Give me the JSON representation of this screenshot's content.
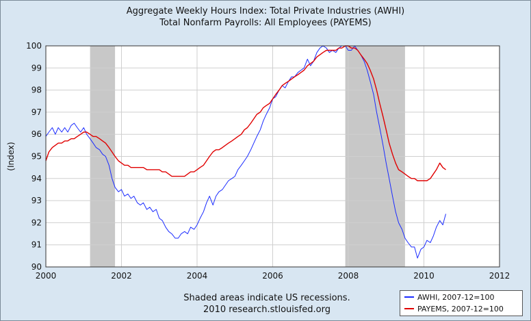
{
  "chart_data": {
    "type": "line",
    "title": "Aggregate Weekly Hours Index: Total Private Industries (AWHI)",
    "subtitle": "Total Nonfarm Payrolls: All Employees (PAYEMS)",
    "xlabel": "",
    "ylabel": "(Index)",
    "xlim": [
      2000,
      2012
    ],
    "ylim": [
      90,
      100
    ],
    "x_ticks": [
      "2000",
      "2002",
      "2004",
      "2006",
      "2008",
      "2010",
      "2012"
    ],
    "y_ticks": [
      "90",
      "91",
      "92",
      "93",
      "94",
      "95",
      "96",
      "97",
      "98",
      "99",
      "100"
    ],
    "grid": true,
    "legend_position": "bottom-right",
    "recessions": [
      [
        2001.17,
        2001.83
      ],
      [
        2007.92,
        2009.5
      ]
    ],
    "series": [
      {
        "name": "AWHI, 2007-12=100",
        "color": "#1a2bff",
        "points": [
          [
            2000.0,
            95.9
          ],
          [
            2000.08,
            96.1
          ],
          [
            2000.17,
            96.3
          ],
          [
            2000.25,
            96.0
          ],
          [
            2000.33,
            96.3
          ],
          [
            2000.42,
            96.1
          ],
          [
            2000.5,
            96.3
          ],
          [
            2000.58,
            96.1
          ],
          [
            2000.67,
            96.4
          ],
          [
            2000.75,
            96.5
          ],
          [
            2000.83,
            96.3
          ],
          [
            2000.92,
            96.1
          ],
          [
            2001.0,
            96.3
          ],
          [
            2001.08,
            96.0
          ],
          [
            2001.17,
            95.8
          ],
          [
            2001.25,
            95.6
          ],
          [
            2001.33,
            95.4
          ],
          [
            2001.42,
            95.3
          ],
          [
            2001.5,
            95.1
          ],
          [
            2001.58,
            95.0
          ],
          [
            2001.67,
            94.6
          ],
          [
            2001.75,
            94.0
          ],
          [
            2001.83,
            93.6
          ],
          [
            2001.92,
            93.4
          ],
          [
            2002.0,
            93.5
          ],
          [
            2002.08,
            93.2
          ],
          [
            2002.17,
            93.3
          ],
          [
            2002.25,
            93.1
          ],
          [
            2002.33,
            93.2
          ],
          [
            2002.42,
            92.9
          ],
          [
            2002.5,
            92.8
          ],
          [
            2002.58,
            92.9
          ],
          [
            2002.67,
            92.6
          ],
          [
            2002.75,
            92.7
          ],
          [
            2002.83,
            92.5
          ],
          [
            2002.92,
            92.6
          ],
          [
            2003.0,
            92.2
          ],
          [
            2003.08,
            92.1
          ],
          [
            2003.17,
            91.8
          ],
          [
            2003.25,
            91.6
          ],
          [
            2003.33,
            91.5
          ],
          [
            2003.42,
            91.3
          ],
          [
            2003.5,
            91.3
          ],
          [
            2003.58,
            91.5
          ],
          [
            2003.67,
            91.6
          ],
          [
            2003.75,
            91.5
          ],
          [
            2003.83,
            91.8
          ],
          [
            2003.92,
            91.7
          ],
          [
            2004.0,
            91.9
          ],
          [
            2004.08,
            92.2
          ],
          [
            2004.17,
            92.5
          ],
          [
            2004.25,
            92.9
          ],
          [
            2004.33,
            93.2
          ],
          [
            2004.42,
            92.8
          ],
          [
            2004.5,
            93.2
          ],
          [
            2004.58,
            93.4
          ],
          [
            2004.67,
            93.5
          ],
          [
            2004.75,
            93.7
          ],
          [
            2004.83,
            93.9
          ],
          [
            2004.92,
            94.0
          ],
          [
            2005.0,
            94.1
          ],
          [
            2005.08,
            94.4
          ],
          [
            2005.17,
            94.6
          ],
          [
            2005.25,
            94.8
          ],
          [
            2005.33,
            95.0
          ],
          [
            2005.42,
            95.3
          ],
          [
            2005.5,
            95.6
          ],
          [
            2005.58,
            95.9
          ],
          [
            2005.67,
            96.2
          ],
          [
            2005.75,
            96.6
          ],
          [
            2005.83,
            96.9
          ],
          [
            2005.92,
            97.2
          ],
          [
            2006.0,
            97.6
          ],
          [
            2006.08,
            97.7
          ],
          [
            2006.17,
            98.0
          ],
          [
            2006.25,
            98.2
          ],
          [
            2006.33,
            98.1
          ],
          [
            2006.42,
            98.4
          ],
          [
            2006.5,
            98.6
          ],
          [
            2006.58,
            98.6
          ],
          [
            2006.67,
            98.8
          ],
          [
            2006.75,
            98.9
          ],
          [
            2006.83,
            99.0
          ],
          [
            2006.92,
            99.4
          ],
          [
            2007.0,
            99.1
          ],
          [
            2007.08,
            99.3
          ],
          [
            2007.17,
            99.7
          ],
          [
            2007.25,
            99.9
          ],
          [
            2007.33,
            100.0
          ],
          [
            2007.42,
            99.9
          ],
          [
            2007.5,
            99.7
          ],
          [
            2007.58,
            99.8
          ],
          [
            2007.67,
            99.7
          ],
          [
            2007.75,
            99.9
          ],
          [
            2007.83,
            100.0
          ],
          [
            2007.92,
            100.0
          ],
          [
            2008.0,
            99.8
          ],
          [
            2008.08,
            99.8
          ],
          [
            2008.17,
            100.0
          ],
          [
            2008.25,
            99.8
          ],
          [
            2008.33,
            99.6
          ],
          [
            2008.42,
            99.3
          ],
          [
            2008.5,
            98.9
          ],
          [
            2008.58,
            98.4
          ],
          [
            2008.67,
            97.8
          ],
          [
            2008.75,
            97.0
          ],
          [
            2008.83,
            96.3
          ],
          [
            2008.92,
            95.5
          ],
          [
            2009.0,
            94.7
          ],
          [
            2009.08,
            94.0
          ],
          [
            2009.17,
            93.2
          ],
          [
            2009.25,
            92.5
          ],
          [
            2009.33,
            92.0
          ],
          [
            2009.42,
            91.7
          ],
          [
            2009.5,
            91.3
          ],
          [
            2009.58,
            91.1
          ],
          [
            2009.67,
            90.9
          ],
          [
            2009.75,
            90.9
          ],
          [
            2009.83,
            90.4
          ],
          [
            2009.92,
            90.8
          ],
          [
            2010.0,
            90.9
          ],
          [
            2010.08,
            91.2
          ],
          [
            2010.17,
            91.1
          ],
          [
            2010.25,
            91.4
          ],
          [
            2010.33,
            91.8
          ],
          [
            2010.42,
            92.1
          ],
          [
            2010.5,
            91.9
          ],
          [
            2010.58,
            92.4
          ]
        ]
      },
      {
        "name": "PAYEMS, 2007-12=100",
        "color": "#e00000",
        "points": [
          [
            2000.0,
            94.8
          ],
          [
            2000.08,
            95.2
          ],
          [
            2000.17,
            95.4
          ],
          [
            2000.25,
            95.5
          ],
          [
            2000.33,
            95.6
          ],
          [
            2000.42,
            95.6
          ],
          [
            2000.5,
            95.7
          ],
          [
            2000.58,
            95.7
          ],
          [
            2000.67,
            95.8
          ],
          [
            2000.75,
            95.8
          ],
          [
            2000.83,
            95.9
          ],
          [
            2000.92,
            96.0
          ],
          [
            2001.0,
            96.1
          ],
          [
            2001.08,
            96.1
          ],
          [
            2001.17,
            96.0
          ],
          [
            2001.25,
            95.9
          ],
          [
            2001.33,
            95.9
          ],
          [
            2001.42,
            95.8
          ],
          [
            2001.5,
            95.7
          ],
          [
            2001.58,
            95.6
          ],
          [
            2001.67,
            95.4
          ],
          [
            2001.75,
            95.2
          ],
          [
            2001.83,
            95.0
          ],
          [
            2001.92,
            94.8
          ],
          [
            2002.0,
            94.7
          ],
          [
            2002.08,
            94.6
          ],
          [
            2002.17,
            94.6
          ],
          [
            2002.25,
            94.5
          ],
          [
            2002.33,
            94.5
          ],
          [
            2002.42,
            94.5
          ],
          [
            2002.5,
            94.5
          ],
          [
            2002.58,
            94.5
          ],
          [
            2002.67,
            94.4
          ],
          [
            2002.75,
            94.4
          ],
          [
            2002.83,
            94.4
          ],
          [
            2002.92,
            94.4
          ],
          [
            2003.0,
            94.4
          ],
          [
            2003.08,
            94.3
          ],
          [
            2003.17,
            94.3
          ],
          [
            2003.25,
            94.2
          ],
          [
            2003.33,
            94.1
          ],
          [
            2003.42,
            94.1
          ],
          [
            2003.5,
            94.1
          ],
          [
            2003.58,
            94.1
          ],
          [
            2003.67,
            94.1
          ],
          [
            2003.75,
            94.2
          ],
          [
            2003.83,
            94.3
          ],
          [
            2003.92,
            94.3
          ],
          [
            2004.0,
            94.4
          ],
          [
            2004.08,
            94.5
          ],
          [
            2004.17,
            94.6
          ],
          [
            2004.25,
            94.8
          ],
          [
            2004.33,
            95.0
          ],
          [
            2004.42,
            95.2
          ],
          [
            2004.5,
            95.3
          ],
          [
            2004.58,
            95.3
          ],
          [
            2004.67,
            95.4
          ],
          [
            2004.75,
            95.5
          ],
          [
            2004.83,
            95.6
          ],
          [
            2004.92,
            95.7
          ],
          [
            2005.0,
            95.8
          ],
          [
            2005.08,
            95.9
          ],
          [
            2005.17,
            96.0
          ],
          [
            2005.25,
            96.2
          ],
          [
            2005.33,
            96.3
          ],
          [
            2005.42,
            96.5
          ],
          [
            2005.5,
            96.7
          ],
          [
            2005.58,
            96.9
          ],
          [
            2005.67,
            97.0
          ],
          [
            2005.75,
            97.2
          ],
          [
            2005.83,
            97.3
          ],
          [
            2005.92,
            97.4
          ],
          [
            2006.0,
            97.6
          ],
          [
            2006.08,
            97.8
          ],
          [
            2006.17,
            98.0
          ],
          [
            2006.25,
            98.2
          ],
          [
            2006.33,
            98.3
          ],
          [
            2006.42,
            98.4
          ],
          [
            2006.5,
            98.5
          ],
          [
            2006.58,
            98.6
          ],
          [
            2006.67,
            98.7
          ],
          [
            2006.75,
            98.8
          ],
          [
            2006.83,
            98.9
          ],
          [
            2006.92,
            99.1
          ],
          [
            2007.0,
            99.2
          ],
          [
            2007.08,
            99.3
          ],
          [
            2007.17,
            99.5
          ],
          [
            2007.25,
            99.6
          ],
          [
            2007.33,
            99.7
          ],
          [
            2007.42,
            99.8
          ],
          [
            2007.5,
            99.8
          ],
          [
            2007.58,
            99.8
          ],
          [
            2007.67,
            99.8
          ],
          [
            2007.75,
            99.9
          ],
          [
            2007.83,
            99.9
          ],
          [
            2007.92,
            100.0
          ],
          [
            2008.0,
            100.0
          ],
          [
            2008.08,
            99.9
          ],
          [
            2008.17,
            99.9
          ],
          [
            2008.25,
            99.8
          ],
          [
            2008.33,
            99.6
          ],
          [
            2008.42,
            99.4
          ],
          [
            2008.5,
            99.2
          ],
          [
            2008.58,
            98.9
          ],
          [
            2008.67,
            98.5
          ],
          [
            2008.75,
            98.0
          ],
          [
            2008.83,
            97.4
          ],
          [
            2008.92,
            96.8
          ],
          [
            2009.0,
            96.2
          ],
          [
            2009.08,
            95.6
          ],
          [
            2009.17,
            95.1
          ],
          [
            2009.25,
            94.7
          ],
          [
            2009.33,
            94.4
          ],
          [
            2009.42,
            94.3
          ],
          [
            2009.5,
            94.2
          ],
          [
            2009.58,
            94.1
          ],
          [
            2009.67,
            94.0
          ],
          [
            2009.75,
            94.0
          ],
          [
            2009.83,
            93.9
          ],
          [
            2009.92,
            93.9
          ],
          [
            2010.0,
            93.9
          ],
          [
            2010.08,
            93.9
          ],
          [
            2010.17,
            94.0
          ],
          [
            2010.25,
            94.2
          ],
          [
            2010.33,
            94.4
          ],
          [
            2010.42,
            94.7
          ],
          [
            2010.5,
            94.5
          ],
          [
            2010.58,
            94.4
          ]
        ]
      }
    ]
  },
  "footer": {
    "line1": "Shaded areas indicate US recessions.",
    "line2": "2010 research.stlouisfed.org"
  },
  "colors": {
    "background": "#d8e6f2",
    "plot_bg": "#ffffff",
    "recession": "#c8c8c8",
    "grid": "#cfcfcf"
  }
}
